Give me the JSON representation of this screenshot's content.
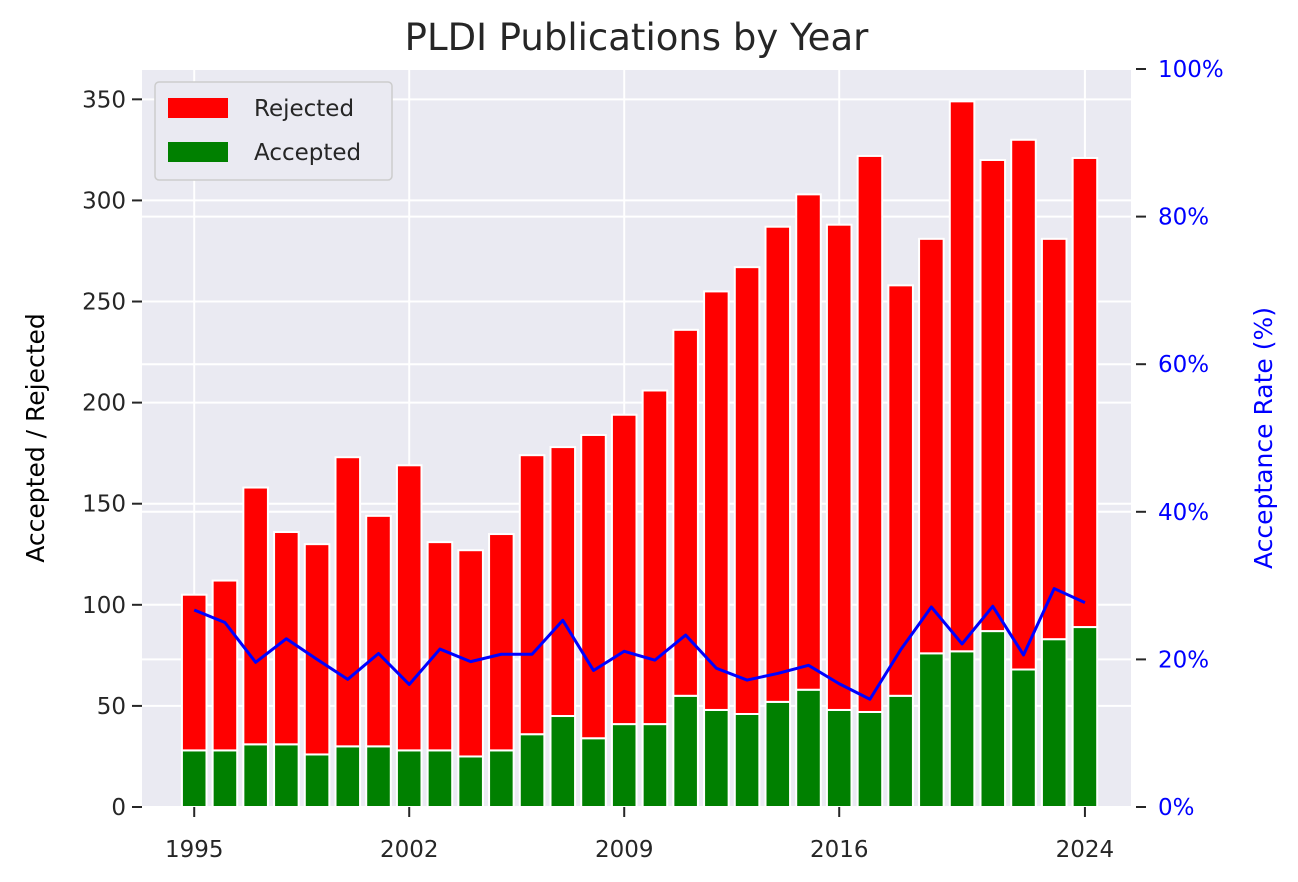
{
  "chart_data": {
    "type": "bar",
    "stacked": true,
    "title": "PLDI Publications by Year",
    "ylabel": "Accepted / Rejected",
    "y2label": "Acceptance Rate (%)",
    "ylim": [
      0,
      365
    ],
    "y2lim": [
      0,
      100
    ],
    "xlim": [
      1993.3,
      2025.5
    ],
    "x_ticks": [
      1995,
      2002,
      2009,
      2016,
      2024
    ],
    "y_ticks": [
      0,
      50,
      100,
      150,
      200,
      250,
      300,
      350
    ],
    "y2_ticks": [
      0,
      20,
      40,
      60,
      80,
      100
    ],
    "y2_tick_labels": [
      "0%",
      "20%",
      "40%",
      "60%",
      "80%",
      "100%"
    ],
    "grid": true,
    "legend_position": "upper-left",
    "x": [
      1995,
      1996,
      1997,
      1998,
      1999,
      2000,
      2001,
      2002,
      2003,
      2004,
      2005,
      2006,
      2007,
      2008,
      2009,
      2010,
      2011,
      2012,
      2013,
      2014,
      2015,
      2016,
      2017,
      2018,
      2019,
      2020,
      2021,
      2022,
      2023,
      2024
    ],
    "series": [
      {
        "name": "Accepted",
        "color": "#008000",
        "values": [
          28,
          28,
          31,
          31,
          26,
          30,
          30,
          28,
          28,
          25,
          28,
          36,
          45,
          34,
          41,
          41,
          55,
          48,
          46,
          52,
          58,
          48,
          47,
          55,
          76,
          77,
          87,
          68,
          83,
          89
        ]
      },
      {
        "name": "Rejected",
        "color": "#ff0000",
        "values": [
          77,
          84,
          127,
          105,
          104,
          143,
          114,
          141,
          103,
          102,
          107,
          138,
          133,
          150,
          153,
          165,
          181,
          207,
          221,
          235,
          245,
          240,
          275,
          203,
          205,
          272,
          233,
          262,
          198,
          232
        ]
      }
    ],
    "line_series": {
      "name": "Acceptance Rate (%)",
      "color": "#0000ff",
      "axis": "right",
      "values": [
        26.7,
        25.0,
        19.6,
        22.8,
        20.0,
        17.3,
        20.8,
        16.6,
        21.4,
        19.7,
        20.7,
        20.7,
        25.3,
        18.5,
        21.1,
        19.9,
        23.3,
        18.8,
        17.2,
        18.1,
        19.2,
        16.7,
        14.6,
        21.3,
        27.1,
        22.1,
        27.2,
        20.6,
        29.6,
        27.7
      ]
    },
    "legend": [
      "Rejected",
      "Accepted"
    ]
  }
}
